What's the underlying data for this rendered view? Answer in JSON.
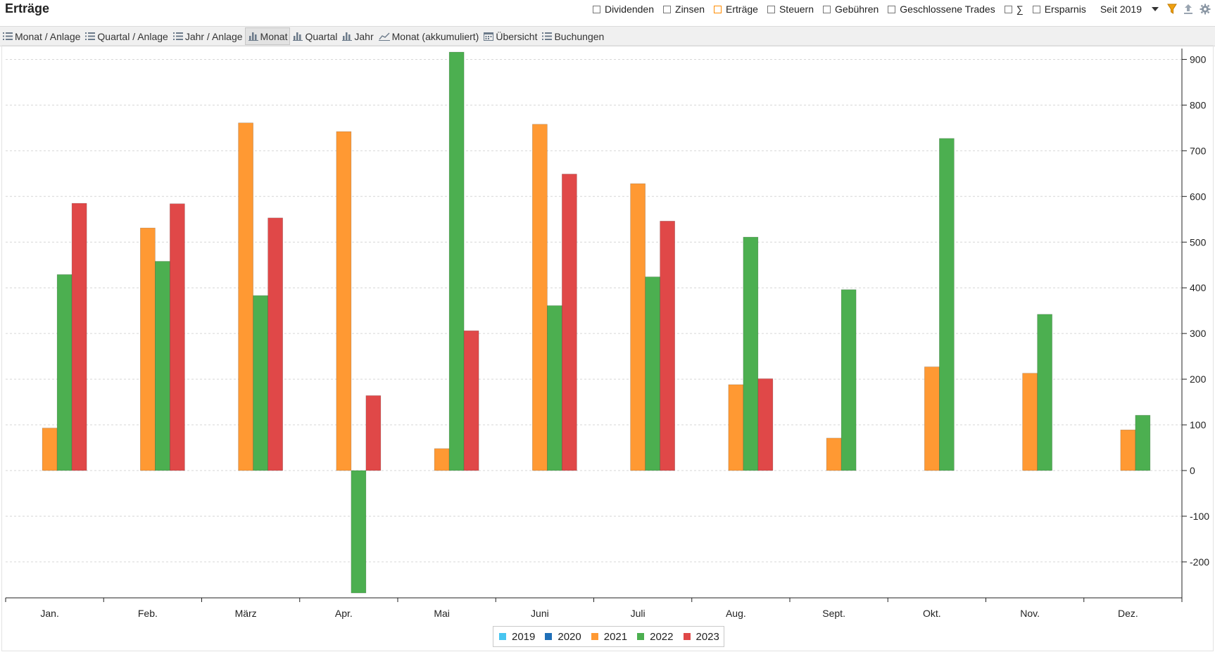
{
  "app": {
    "title": "Erträge"
  },
  "filters": [
    {
      "label": "Dividenden",
      "checked": false,
      "accent": false
    },
    {
      "label": "Zinsen",
      "checked": false,
      "accent": false
    },
    {
      "label": "Erträge",
      "checked": false,
      "accent": true
    },
    {
      "label": "Steuern",
      "checked": false,
      "accent": false
    },
    {
      "label": "Gebühren",
      "checked": false,
      "accent": false
    },
    {
      "label": "Geschlossene Trades",
      "checked": false,
      "accent": false
    },
    {
      "label": "∑",
      "checked": false,
      "accent": false
    },
    {
      "label": "Ersparnis",
      "checked": false,
      "accent": false
    }
  ],
  "period": {
    "label": "Seit 2019"
  },
  "toolbar_icons": [
    "filter-icon",
    "export-icon",
    "settings-gear-icon"
  ],
  "tabs": [
    {
      "label": "Monat / Anlage",
      "icon": "list-icon",
      "active": false
    },
    {
      "label": "Quartal / Anlage",
      "icon": "list-icon",
      "active": false
    },
    {
      "label": "Jahr / Anlage",
      "icon": "list-icon",
      "active": false
    },
    {
      "label": "Monat",
      "icon": "bar-chart-icon",
      "active": true
    },
    {
      "label": "Quartal",
      "icon": "bar-chart-icon",
      "active": false
    },
    {
      "label": "Jahr",
      "icon": "bar-chart-icon",
      "active": false
    },
    {
      "label": "Monat (akkumuliert)",
      "icon": "line-chart-icon",
      "active": false
    },
    {
      "label": "Übersicht",
      "icon": "calendar-icon",
      "active": false
    },
    {
      "label": "Buchungen",
      "icon": "list-icon",
      "active": false
    }
  ],
  "colors": {
    "2019": "#47c5f0",
    "2020": "#1f6fb8",
    "2021": "#ff9933",
    "2022": "#4caf50",
    "2023": "#e04848"
  },
  "chart_data": {
    "type": "bar",
    "categories": [
      "Jan.",
      "Feb.",
      "März",
      "Apr.",
      "Mai",
      "Juni",
      "Juli",
      "Aug.",
      "Sept.",
      "Okt.",
      "Nov.",
      "Dez."
    ],
    "series": [
      {
        "name": "2019",
        "values": [
          0,
          0,
          0,
          0,
          0,
          0,
          0,
          0,
          0,
          0,
          0,
          0
        ]
      },
      {
        "name": "2020",
        "values": [
          0,
          0,
          0,
          0,
          0,
          0,
          0,
          0,
          0,
          0,
          0,
          0
        ]
      },
      {
        "name": "2021",
        "values": [
          93,
          531,
          761,
          742,
          48,
          758,
          628,
          188,
          71,
          227,
          213,
          89
        ]
      },
      {
        "name": "2022",
        "values": [
          429,
          458,
          383,
          -268,
          916,
          361,
          424,
          511,
          396,
          727,
          342,
          121
        ]
      },
      {
        "name": "2023",
        "values": [
          585,
          584,
          553,
          164,
          306,
          649,
          546,
          201,
          null,
          null,
          null,
          null
        ]
      }
    ],
    "y_ticks": [
      -200,
      -100,
      0,
      100,
      200,
      300,
      400,
      500,
      600,
      700,
      800,
      900
    ],
    "ylim": [
      -278,
      935
    ],
    "y_axis_side": "right",
    "grid": true,
    "legend": [
      "2019",
      "2020",
      "2021",
      "2022",
      "2023"
    ],
    "legend_position": "bottom-center"
  }
}
